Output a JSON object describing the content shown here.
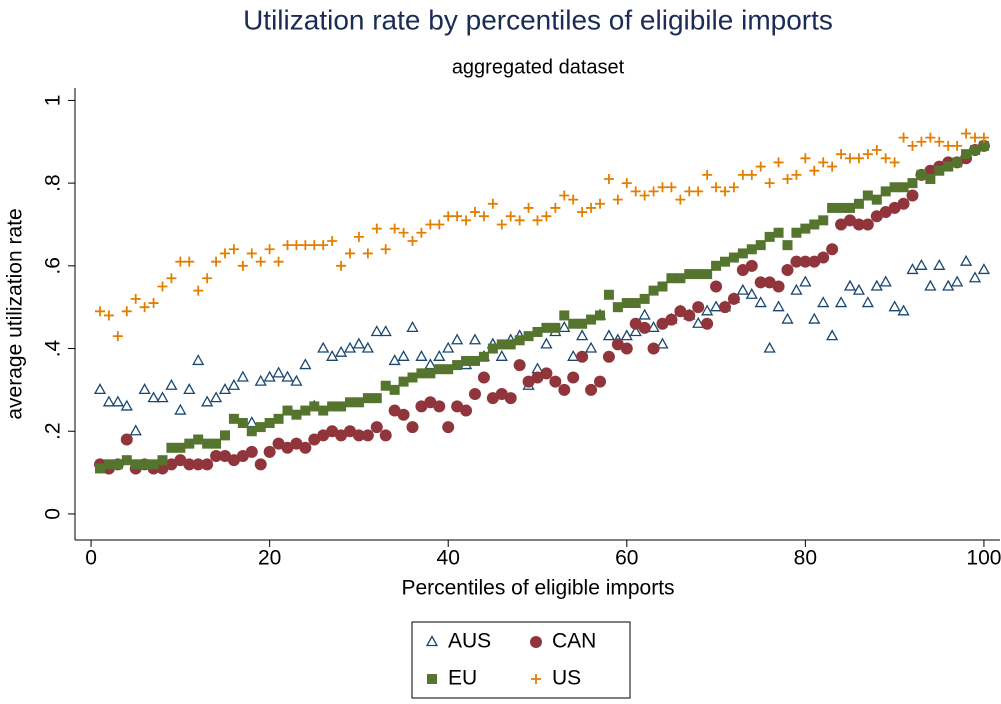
{
  "chart_data": {
    "type": "scatter",
    "title": "Utilization rate by percentiles of eligibile imports",
    "subtitle": "aggregated dataset",
    "x_label": "Percentiles of eligible imports",
    "y_label": "average utilization rate",
    "x": [
      1,
      2,
      3,
      4,
      5,
      6,
      7,
      8,
      9,
      10,
      11,
      12,
      13,
      14,
      15,
      16,
      17,
      18,
      19,
      20,
      21,
      22,
      23,
      24,
      25,
      26,
      27,
      28,
      29,
      30,
      31,
      32,
      33,
      34,
      35,
      36,
      37,
      38,
      39,
      40,
      41,
      42,
      43,
      44,
      45,
      46,
      47,
      48,
      49,
      50,
      51,
      52,
      53,
      54,
      55,
      56,
      57,
      58,
      59,
      60,
      61,
      62,
      63,
      64,
      65,
      66,
      67,
      68,
      69,
      70,
      71,
      72,
      73,
      74,
      75,
      76,
      77,
      78,
      79,
      80,
      81,
      82,
      83,
      84,
      85,
      86,
      87,
      88,
      89,
      90,
      91,
      92,
      93,
      94,
      95,
      96,
      97,
      98,
      99,
      100
    ],
    "xlim": [
      -1.8,
      101.8
    ],
    "xticks": [
      0,
      20,
      40,
      60,
      80,
      100
    ],
    "ylim": [
      -0.063,
      1.03
    ],
    "yticks": [
      0,
      {
        "value": 0.2,
        "label": ".2"
      },
      {
        "value": 0.4,
        "label": ".4"
      },
      {
        "value": 0.6,
        "label": ".6"
      },
      {
        "value": 0.8,
        "label": ".8"
      },
      1
    ],
    "series": [
      {
        "name": "AUS",
        "color": "#1a476f",
        "marker": "triangle",
        "values": [
          0.3,
          0.27,
          0.27,
          0.26,
          0.2,
          0.3,
          0.28,
          0.28,
          0.31,
          0.25,
          0.3,
          0.37,
          0.27,
          0.28,
          0.3,
          0.31,
          0.33,
          0.22,
          0.32,
          0.33,
          0.34,
          0.33,
          0.32,
          0.36,
          0.26,
          0.4,
          0.38,
          0.39,
          0.4,
          0.41,
          0.4,
          0.44,
          0.44,
          0.37,
          0.38,
          0.45,
          0.38,
          0.36,
          0.38,
          0.4,
          0.42,
          0.36,
          0.42,
          0.38,
          0.41,
          0.38,
          0.42,
          0.43,
          0.31,
          0.35,
          0.41,
          0.44,
          0.45,
          0.38,
          0.43,
          0.4,
          0.48,
          0.43,
          0.42,
          0.43,
          0.44,
          0.48,
          0.45,
          0.41,
          0.47,
          0.49,
          0.48,
          0.46,
          0.49,
          0.5,
          0.5,
          0.52,
          0.54,
          0.53,
          0.51,
          0.4,
          0.5,
          0.47,
          0.54,
          0.56,
          0.47,
          0.51,
          0.43,
          0.51,
          0.55,
          0.54,
          0.51,
          0.55,
          0.56,
          0.5,
          0.49,
          0.59,
          0.6,
          0.55,
          0.6,
          0.55,
          0.56,
          0.61,
          0.57,
          0.59
        ]
      },
      {
        "name": "CAN",
        "color": "#90353b",
        "marker": "circle",
        "values": [
          0.12,
          0.11,
          0.12,
          0.18,
          0.11,
          0.12,
          0.11,
          0.11,
          0.12,
          0.13,
          0.12,
          0.12,
          0.12,
          0.14,
          0.14,
          0.13,
          0.14,
          0.15,
          0.12,
          0.15,
          0.17,
          0.16,
          0.17,
          0.16,
          0.18,
          0.19,
          0.2,
          0.19,
          0.2,
          0.19,
          0.19,
          0.21,
          0.19,
          0.25,
          0.24,
          0.21,
          0.26,
          0.27,
          0.26,
          0.21,
          0.26,
          0.25,
          0.29,
          0.33,
          0.28,
          0.29,
          0.28,
          0.36,
          0.32,
          0.33,
          0.34,
          0.32,
          0.3,
          0.33,
          0.38,
          0.3,
          0.32,
          0.38,
          0.41,
          0.4,
          0.46,
          0.45,
          0.4,
          0.46,
          0.47,
          0.49,
          0.48,
          0.5,
          0.46,
          0.55,
          0.5,
          0.52,
          0.59,
          0.6,
          0.56,
          0.56,
          0.55,
          0.59,
          0.61,
          0.61,
          0.61,
          0.62,
          0.64,
          0.7,
          0.71,
          0.7,
          0.7,
          0.72,
          0.73,
          0.74,
          0.75,
          0.77,
          0.82,
          0.83,
          0.84,
          0.85,
          0.85,
          0.86,
          0.88,
          0.89
        ]
      },
      {
        "name": "EU",
        "color": "#55752f",
        "marker": "square",
        "values": [
          0.11,
          0.12,
          0.12,
          0.13,
          0.12,
          0.12,
          0.12,
          0.13,
          0.16,
          0.16,
          0.17,
          0.18,
          0.17,
          0.17,
          0.19,
          0.23,
          0.22,
          0.2,
          0.21,
          0.22,
          0.23,
          0.25,
          0.24,
          0.25,
          0.26,
          0.25,
          0.26,
          0.26,
          0.27,
          0.27,
          0.28,
          0.28,
          0.31,
          0.3,
          0.32,
          0.33,
          0.34,
          0.34,
          0.35,
          0.35,
          0.36,
          0.37,
          0.37,
          0.38,
          0.4,
          0.41,
          0.41,
          0.42,
          0.43,
          0.44,
          0.45,
          0.45,
          0.48,
          0.46,
          0.46,
          0.47,
          0.48,
          0.53,
          0.5,
          0.51,
          0.51,
          0.52,
          0.54,
          0.55,
          0.57,
          0.57,
          0.58,
          0.58,
          0.58,
          0.6,
          0.61,
          0.62,
          0.63,
          0.64,
          0.65,
          0.67,
          0.68,
          0.65,
          0.68,
          0.69,
          0.7,
          0.71,
          0.74,
          0.74,
          0.74,
          0.75,
          0.77,
          0.76,
          0.78,
          0.79,
          0.79,
          0.8,
          0.82,
          0.81,
          0.83,
          0.84,
          0.85,
          0.87,
          0.88,
          0.89
        ]
      },
      {
        "name": "US",
        "color": "#e37e00",
        "marker": "plus",
        "values": [
          0.49,
          0.48,
          0.43,
          0.49,
          0.52,
          0.5,
          0.51,
          0.55,
          0.57,
          0.61,
          0.61,
          0.54,
          0.57,
          0.61,
          0.63,
          0.64,
          0.6,
          0.63,
          0.61,
          0.64,
          0.61,
          0.65,
          0.65,
          0.65,
          0.65,
          0.65,
          0.66,
          0.6,
          0.63,
          0.67,
          0.63,
          0.69,
          0.64,
          0.69,
          0.68,
          0.66,
          0.68,
          0.7,
          0.7,
          0.72,
          0.72,
          0.71,
          0.73,
          0.72,
          0.75,
          0.7,
          0.72,
          0.71,
          0.74,
          0.71,
          0.72,
          0.74,
          0.77,
          0.76,
          0.73,
          0.74,
          0.75,
          0.81,
          0.76,
          0.8,
          0.78,
          0.77,
          0.78,
          0.79,
          0.79,
          0.76,
          0.78,
          0.78,
          0.82,
          0.79,
          0.78,
          0.79,
          0.82,
          0.82,
          0.84,
          0.8,
          0.85,
          0.81,
          0.82,
          0.86,
          0.83,
          0.85,
          0.84,
          0.87,
          0.86,
          0.86,
          0.87,
          0.88,
          0.86,
          0.85,
          0.91,
          0.89,
          0.9,
          0.91,
          0.9,
          0.89,
          0.89,
          0.92,
          0.91,
          0.91
        ]
      }
    ]
  }
}
